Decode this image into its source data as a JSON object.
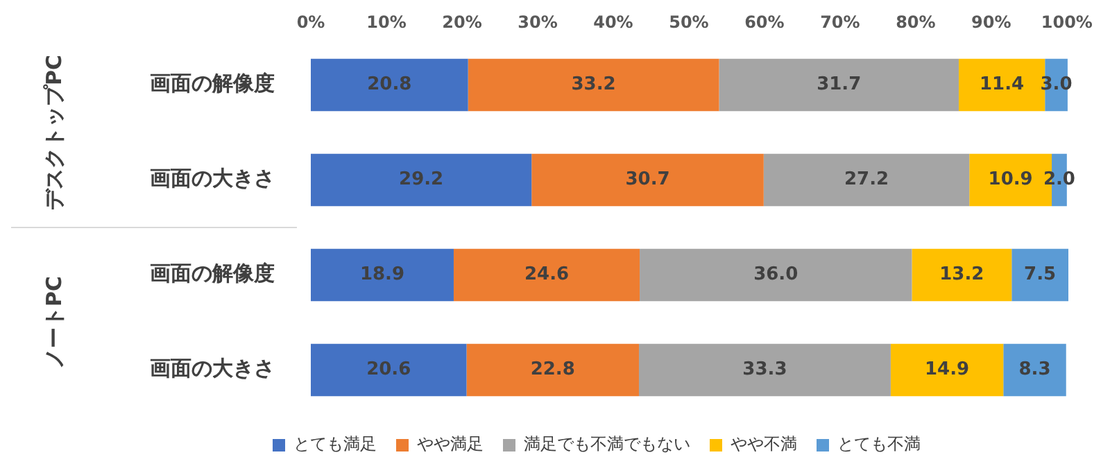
{
  "chart_data": {
    "type": "bar",
    "orientation": "horizontal",
    "stacked": true,
    "categories": [
      "画面の解像度",
      "画面の大きさ",
      "画面の解像度",
      "画面の大きさ"
    ],
    "annotations": [
      "デスクトップPC",
      "ノートPC"
    ],
    "series": [
      {
        "name": "とても満足",
        "color": "#4472c4",
        "values": [
          20.8,
          29.2,
          18.9,
          20.6
        ],
        "value_labels": [
          "20.8",
          "29.2",
          "18.9",
          "20.6"
        ]
      },
      {
        "name": "やや満足",
        "color": "#ed7d31",
        "values": [
          33.2,
          30.7,
          24.6,
          22.8
        ],
        "value_labels": [
          "33.2",
          "30.7",
          "24.6",
          "22.8"
        ]
      },
      {
        "name": "満足でも不満でもない",
        "color": "#a5a5a5",
        "values": [
          31.7,
          27.2,
          36.0,
          33.3
        ],
        "value_labels": [
          "31.7",
          "27.2",
          "36.0",
          "33.3"
        ]
      },
      {
        "name": "やや不満",
        "color": "#ffc000",
        "values": [
          11.4,
          10.9,
          13.2,
          14.9
        ],
        "value_labels": [
          "11.4",
          "10.9",
          "13.2",
          "14.9"
        ]
      },
      {
        "name": "とても不満",
        "color": "#5b9bd5",
        "values": [
          3.0,
          2.0,
          7.5,
          8.3
        ],
        "value_labels": [
          "3.0",
          "2.0",
          "7.5",
          "8.3"
        ]
      }
    ],
    "xlim": [
      0,
      100.2
    ],
    "xticks": [
      {
        "value": 0,
        "label": "0%"
      },
      {
        "value": 10,
        "label": "10%"
      },
      {
        "value": 20,
        "label": "20%"
      },
      {
        "value": 30,
        "label": "30%"
      },
      {
        "value": 40,
        "label": "40%"
      },
      {
        "value": 50,
        "label": "50%"
      },
      {
        "value": 60,
        "label": "60%"
      },
      {
        "value": 70,
        "label": "70%"
      },
      {
        "value": 80,
        "label": "80%"
      },
      {
        "value": 90,
        "label": "90%"
      },
      {
        "value": 100,
        "label": "100%"
      }
    ],
    "grid": false,
    "legend": "bottom"
  }
}
